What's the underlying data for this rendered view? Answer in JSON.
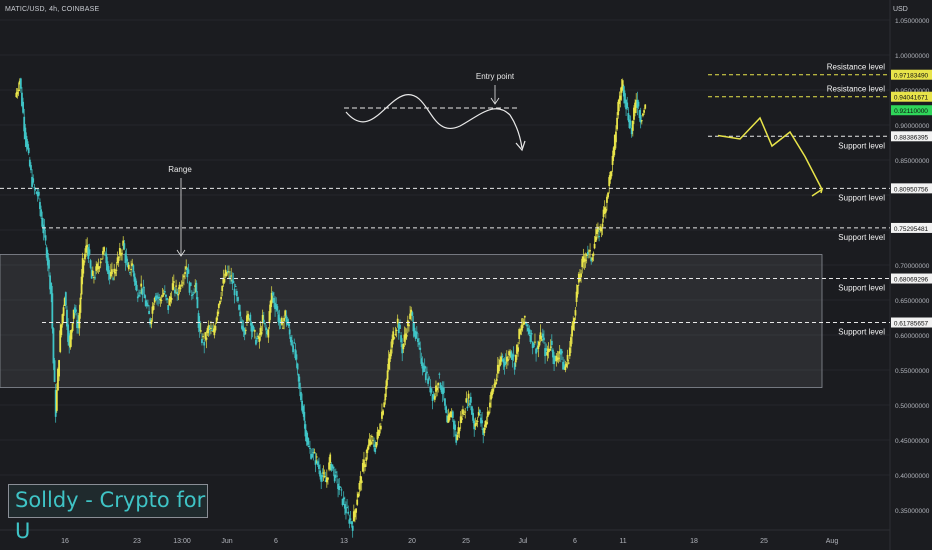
{
  "header": {
    "symbol": "MATIC/USD, 4h, COINBASE",
    "currency": "USD"
  },
  "brand": {
    "text": "Solldy - Crypto for U"
  },
  "colors": {
    "up": "#e8e44a",
    "down": "#3fc4c6",
    "background": "#1b1c20",
    "level_line": "#e8e8e8",
    "resistance_line": "#e8e44a"
  },
  "chart_data": {
    "type": "candlestick",
    "ylim": [
      0.31,
      1.11
    ],
    "y_ticks": [
      0.35,
      0.4,
      0.45,
      0.5,
      0.55,
      0.6,
      0.65,
      0.7,
      0.85,
      0.9,
      0.95,
      1.0,
      1.05
    ],
    "y_tick_labels": [
      "0.35000000",
      "0.40000000",
      "0.45000000",
      "0.50000000",
      "0.55000000",
      "0.60000000",
      "0.65000000",
      "0.70000000",
      "0.85000000",
      "0.90000000",
      "0.95000000",
      "1.00000000",
      "1.05000000"
    ],
    "x_tick_labels": [
      "16",
      "23",
      "13:00",
      "Jun",
      "6",
      "13",
      "20",
      "25",
      "Jul",
      "6",
      "11",
      "18",
      "25",
      "Aug"
    ],
    "price_path": [
      [
        0,
        0.94
      ],
      [
        2,
        0.965
      ],
      [
        4,
        0.9
      ],
      [
        6,
        0.85
      ],
      [
        8,
        0.81
      ],
      [
        10,
        0.8
      ],
      [
        12,
        0.76
      ],
      [
        14,
        0.72
      ],
      [
        16,
        0.66
      ],
      [
        17,
        0.56
      ],
      [
        18,
        0.49
      ],
      [
        20,
        0.6
      ],
      [
        22,
        0.66
      ],
      [
        24,
        0.58
      ],
      [
        26,
        0.64
      ],
      [
        28,
        0.61
      ],
      [
        30,
        0.7
      ],
      [
        32,
        0.73
      ],
      [
        34,
        0.68
      ],
      [
        36,
        0.69
      ],
      [
        38,
        0.71
      ],
      [
        40,
        0.72
      ],
      [
        42,
        0.68
      ],
      [
        44,
        0.69
      ],
      [
        46,
        0.71
      ],
      [
        48,
        0.73
      ],
      [
        50,
        0.69
      ],
      [
        52,
        0.7
      ],
      [
        54,
        0.66
      ],
      [
        56,
        0.67
      ],
      [
        60,
        0.62
      ],
      [
        62,
        0.66
      ],
      [
        64,
        0.65
      ],
      [
        66,
        0.66
      ],
      [
        68,
        0.64
      ],
      [
        70,
        0.67
      ],
      [
        72,
        0.66
      ],
      [
        74,
        0.68
      ],
      [
        76,
        0.7
      ],
      [
        78,
        0.66
      ],
      [
        80,
        0.67
      ],
      [
        82,
        0.6
      ],
      [
        84,
        0.59
      ],
      [
        86,
        0.61
      ],
      [
        88,
        0.6
      ],
      [
        90,
        0.64
      ],
      [
        92,
        0.67
      ],
      [
        94,
        0.69
      ],
      [
        96,
        0.68
      ],
      [
        98,
        0.66
      ],
      [
        100,
        0.62
      ],
      [
        102,
        0.61
      ],
      [
        104,
        0.63
      ],
      [
        106,
        0.6
      ],
      [
        108,
        0.59
      ],
      [
        110,
        0.62
      ],
      [
        112,
        0.6
      ],
      [
        114,
        0.66
      ],
      [
        116,
        0.64
      ],
      [
        118,
        0.61
      ],
      [
        120,
        0.63
      ],
      [
        122,
        0.6
      ],
      [
        124,
        0.58
      ],
      [
        126,
        0.53
      ],
      [
        128,
        0.49
      ],
      [
        130,
        0.44
      ],
      [
        132,
        0.43
      ],
      [
        134,
        0.42
      ],
      [
        136,
        0.4
      ],
      [
        138,
        0.39
      ],
      [
        140,
        0.42
      ],
      [
        142,
        0.4
      ],
      [
        144,
        0.38
      ],
      [
        146,
        0.36
      ],
      [
        148,
        0.34
      ],
      [
        150,
        0.33
      ],
      [
        152,
        0.37
      ],
      [
        154,
        0.4
      ],
      [
        156,
        0.43
      ],
      [
        158,
        0.45
      ],
      [
        160,
        0.44
      ],
      [
        162,
        0.47
      ],
      [
        164,
        0.51
      ],
      [
        166,
        0.56
      ],
      [
        168,
        0.6
      ],
      [
        170,
        0.62
      ],
      [
        172,
        0.58
      ],
      [
        174,
        0.61
      ],
      [
        176,
        0.63
      ],
      [
        178,
        0.6
      ],
      [
        180,
        0.57
      ],
      [
        182,
        0.55
      ],
      [
        184,
        0.53
      ],
      [
        186,
        0.51
      ],
      [
        188,
        0.54
      ],
      [
        190,
        0.52
      ],
      [
        192,
        0.47
      ],
      [
        194,
        0.49
      ],
      [
        196,
        0.45
      ],
      [
        198,
        0.48
      ],
      [
        200,
        0.5
      ],
      [
        202,
        0.51
      ],
      [
        204,
        0.47
      ],
      [
        206,
        0.49
      ],
      [
        208,
        0.46
      ],
      [
        210,
        0.49
      ],
      [
        212,
        0.52
      ],
      [
        214,
        0.54
      ],
      [
        216,
        0.57
      ],
      [
        218,
        0.56
      ],
      [
        220,
        0.58
      ],
      [
        222,
        0.56
      ],
      [
        224,
        0.6
      ],
      [
        226,
        0.62
      ],
      [
        228,
        0.61
      ],
      [
        230,
        0.59
      ],
      [
        232,
        0.58
      ],
      [
        234,
        0.6
      ],
      [
        236,
        0.57
      ],
      [
        238,
        0.59
      ],
      [
        240,
        0.56
      ],
      [
        242,
        0.58
      ],
      [
        244,
        0.55
      ],
      [
        246,
        0.57
      ],
      [
        248,
        0.62
      ],
      [
        250,
        0.67
      ],
      [
        252,
        0.7
      ],
      [
        254,
        0.72
      ],
      [
        256,
        0.71
      ],
      [
        258,
        0.74
      ],
      [
        260,
        0.75
      ],
      [
        262,
        0.78
      ],
      [
        264,
        0.82
      ],
      [
        266,
        0.86
      ],
      [
        268,
        0.93
      ],
      [
        270,
        0.96
      ],
      [
        272,
        0.92
      ],
      [
        274,
        0.89
      ],
      [
        276,
        0.94
      ],
      [
        278,
        0.91
      ],
      [
        280,
        0.925
      ]
    ],
    "levels": [
      {
        "price": 0.9718349,
        "label": "0.97183490",
        "line": "Resistance level",
        "style": "yellow",
        "from_bar": 272,
        "bg": "#e8e44a",
        "fg": "#111"
      },
      {
        "price": 0.94041671,
        "label": "0.94041671",
        "line": "Resistance level",
        "style": "yellow",
        "from_bar": 272,
        "bg": "#e8e44a",
        "fg": "#111"
      },
      {
        "price": 0.9211,
        "label": "0.92110000",
        "line": "",
        "style": "none",
        "from_bar": 280,
        "bg": "#2fd65a",
        "fg": "#111"
      },
      {
        "price": 0.88386395,
        "label": "0.88386395",
        "line": "Support level",
        "style": "white",
        "from_bar": 272,
        "bg": "#f2f2f2",
        "fg": "#111"
      },
      {
        "price": 0.80950756,
        "label": "0.80950756",
        "line": "Support level",
        "style": "white",
        "from_bar": 0,
        "bg": "#f2f2f2",
        "fg": "#111"
      },
      {
        "price": 0.75295481,
        "label": "0.75295481",
        "line": "Support level",
        "style": "white",
        "from_bar": 12,
        "bg": "#f2f2f2",
        "fg": "#111"
      },
      {
        "price": 0.68069296,
        "label": "0.68069296",
        "line": "Support level",
        "style": "white",
        "from_bar": 80,
        "bg": "#f2f2f2",
        "fg": "#111"
      },
      {
        "price": 0.61785657,
        "label": "0.61785657",
        "line": "Support level",
        "style": "white",
        "from_bar": 12,
        "bg": "#f2f2f2",
        "fg": "#111"
      }
    ],
    "range_box": {
      "top": 0.715,
      "bottom": 0.525,
      "label": "Range"
    },
    "entry_point": {
      "label": "Entry point",
      "price": 0.955
    },
    "projection": [
      [
        0.885,
        0.88,
        0.91,
        0.87,
        0.89,
        0.855,
        0.808
      ]
    ]
  }
}
